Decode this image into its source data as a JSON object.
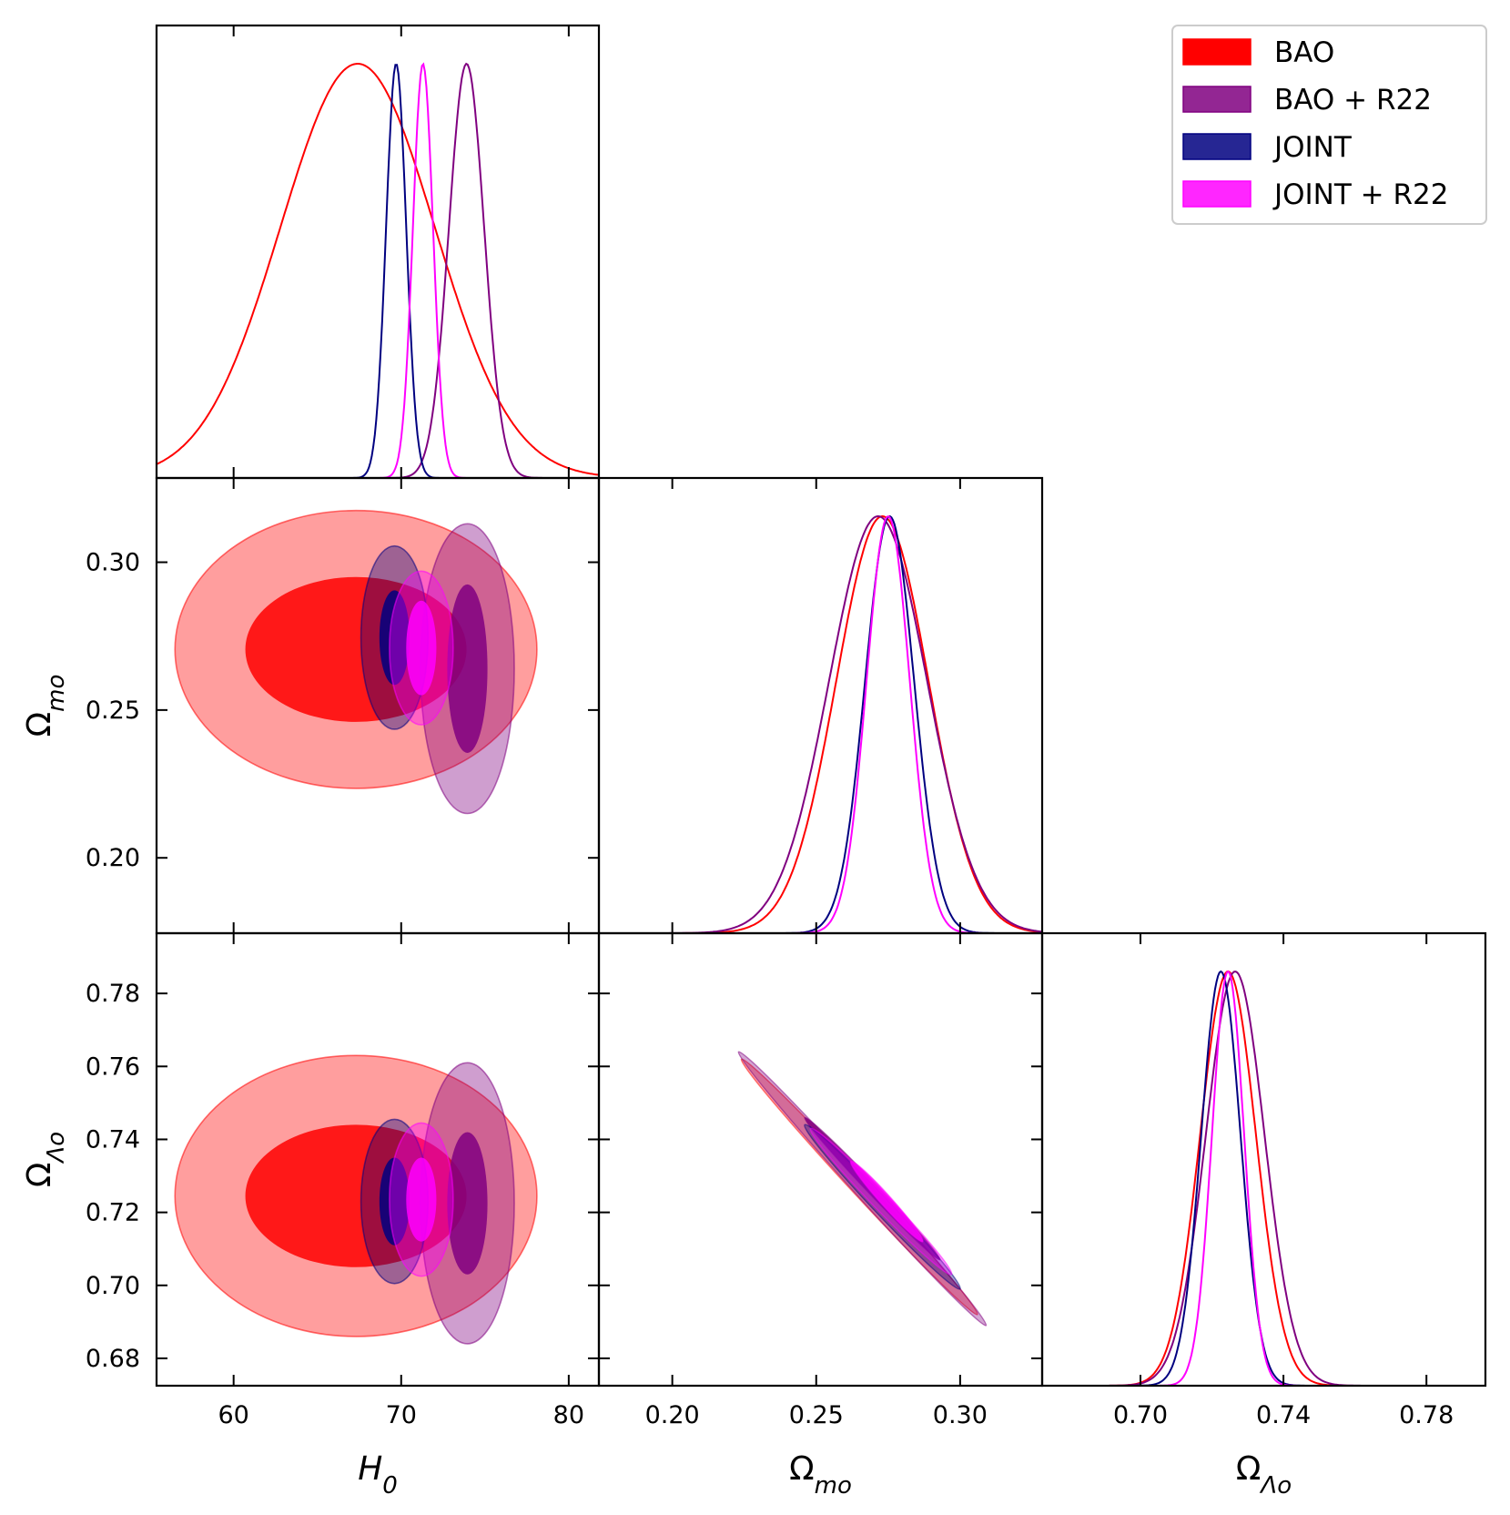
{
  "chart_data": {
    "type": "corner",
    "parameters": [
      {
        "name": "H0",
        "label": "H",
        "subscript": "0",
        "range": [
          55.4,
          81.8
        ],
        "ticks": [
          60,
          70,
          80
        ],
        "tick_labels": [
          "60",
          "70",
          "80"
        ]
      },
      {
        "name": "Omega_mo",
        "label": "Ω",
        "subscript": "mo",
        "range": [
          0.1745,
          0.3285
        ],
        "ticks": [
          0.2,
          0.25,
          0.3
        ],
        "tick_labels": [
          "0.20",
          "0.25",
          "0.30"
        ]
      },
      {
        "name": "Omega_Lambda_o",
        "label": "Ω",
        "subscript": "Λo",
        "range": [
          0.6725,
          0.7965
        ],
        "ticks": [
          0.68,
          0.7,
          0.72,
          0.74,
          0.76,
          0.78
        ],
        "tick_labels": [
          "0.68",
          "0.70",
          "0.72",
          "0.74",
          "0.76",
          "0.78"
        ],
        "x_ticks": [
          0.7,
          0.74,
          0.78
        ],
        "x_tick_labels": [
          "0.70",
          "0.74",
          "0.78"
        ]
      }
    ],
    "series": [
      {
        "name": "BAO",
        "color": "#ff0000",
        "fill": "#ff0000",
        "marginals": {
          "H0": {
            "mean": 67.4,
            "sigma": 4.6
          },
          "Omega_mo": {
            "mean": 0.273,
            "sigma": 0.016
          },
          "Omega_Lambda_o": {
            "mean": 0.7245,
            "sigma": 0.0078
          }
        },
        "contours": {
          "Omega_mo_vs_H0": {
            "center": [
              67.3,
              0.2705
            ],
            "inner_halfwidths": [
              6.6,
              0.0245
            ],
            "outer_halfwidths": [
              10.8,
              0.047
            ]
          },
          "Omega_Lambda_o_vs_H0": {
            "center": [
              67.3,
              0.7245
            ],
            "inner_halfwidths": [
              6.6,
              0.0195
            ],
            "outer_halfwidths": [
              10.8,
              0.0385
            ]
          },
          "Omega_Lambda_o_vs_Omega_mo": {
            "outer_from": [
              0.224,
              0.762
            ],
            "outer_to": [
              0.306,
              0.692
            ]
          }
        }
      },
      {
        "name": "BAO + R22",
        "color": "#800080",
        "fill": "#800080",
        "marginals": {
          "H0": {
            "mean": 73.9,
            "sigma": 1.05
          },
          "Omega_mo": {
            "mean": 0.2715,
            "sigma": 0.017
          },
          "Omega_Lambda_o": {
            "mean": 0.7265,
            "sigma": 0.0082
          }
        },
        "contours": {
          "Omega_mo_vs_H0": {
            "center": [
              73.95,
              0.264
            ],
            "inner_halfwidths": [
              1.2,
              0.0285
            ],
            "outer_halfwidths": [
              2.8,
              0.049
            ]
          },
          "Omega_Lambda_o_vs_H0": {
            "center": [
              73.95,
              0.7225
            ],
            "inner_halfwidths": [
              1.2,
              0.0195
            ],
            "outer_halfwidths": [
              2.8,
              0.0385
            ]
          },
          "Omega_Lambda_o_vs_Omega_mo": {
            "outer_from": [
              0.223,
              0.764
            ],
            "outer_to": [
              0.309,
              0.689
            ],
            "inner_from": [
              0.246,
              0.746
            ],
            "inner_to": [
              0.293,
              0.707
            ]
          }
        }
      },
      {
        "name": "JOINT",
        "color": "#000080",
        "fill": "#000080",
        "marginals": {
          "H0": {
            "mean": 69.7,
            "sigma": 0.6
          },
          "Omega_mo": {
            "mean": 0.2755,
            "sigma": 0.0085
          },
          "Omega_Lambda_o": {
            "mean": 0.7225,
            "sigma": 0.0055
          }
        },
        "contours": {
          "Omega_mo_vs_H0": {
            "center": [
              69.6,
              0.2745
            ],
            "inner_halfwidths": [
              0.9,
              0.016
            ],
            "outer_halfwidths": [
              2.0,
              0.031
            ]
          },
          "Omega_Lambda_o_vs_H0": {
            "center": [
              69.6,
              0.723
            ],
            "inner_halfwidths": [
              0.9,
              0.012
            ],
            "outer_halfwidths": [
              2.0,
              0.0225
            ]
          },
          "Omega_Lambda_o_vs_Omega_mo": {
            "outer_from": [
              0.246,
              0.744
            ],
            "outer_to": [
              0.3,
              0.699
            ]
          }
        }
      },
      {
        "name": "JOINT + R22",
        "color": "#ff00ff",
        "fill": "#ff00ff",
        "marginals": {
          "H0": {
            "mean": 71.3,
            "sigma": 0.6
          },
          "Omega_mo": {
            "mean": 0.275,
            "sigma": 0.0075
          },
          "Omega_Lambda_o": {
            "mean": 0.7245,
            "sigma": 0.0045
          }
        },
        "contours": {
          "Omega_mo_vs_H0": {
            "center": [
              71.2,
              0.271
            ],
            "inner_halfwidths": [
              0.9,
              0.016
            ],
            "outer_halfwidths": [
              1.9,
              0.026
            ]
          },
          "Omega_Lambda_o_vs_H0": {
            "center": [
              71.2,
              0.7235
            ],
            "inner_halfwidths": [
              0.9,
              0.0115
            ],
            "outer_halfwidths": [
              1.9,
              0.021
            ]
          },
          "Omega_Lambda_o_vs_Omega_mo": {
            "outer_from": [
              0.248,
              0.743
            ],
            "outer_to": [
              0.297,
              0.703
            ],
            "inner_from": [
              0.262,
              0.734
            ],
            "inner_to": [
              0.287,
              0.712
            ]
          }
        }
      }
    ],
    "legend_position": "top-right",
    "grid": false
  }
}
